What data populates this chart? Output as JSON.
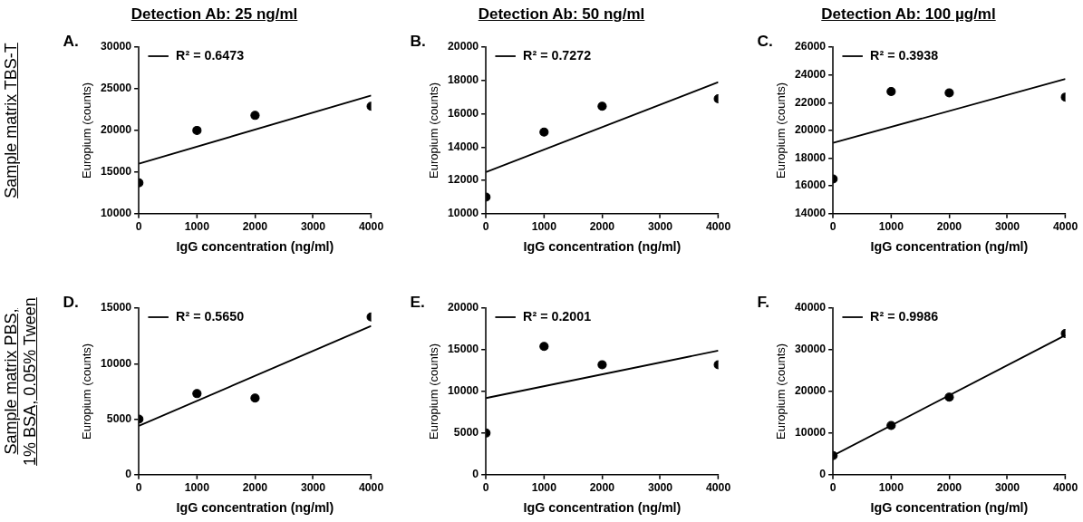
{
  "chart_data": [
    {
      "type": "scatter",
      "title": "Detection Ab: 25 ng/ml",
      "xlabel": "IgG concentration (ng/ml)",
      "ylabel": "Europium (counts)",
      "annotations": [
        "A.",
        "Sample matrix TBS-T"
      ],
      "xlim": [
        0,
        4000
      ],
      "xticks": [
        0,
        1000,
        2000,
        3000,
        4000
      ],
      "ylim": [
        10000,
        30000
      ],
      "yticks": [
        10000,
        15000,
        20000,
        25000,
        30000
      ],
      "grid": false,
      "legend": "top left",
      "series": [
        {
          "type": "scatter",
          "marker": "circle",
          "color": "#000000",
          "x": [
            0,
            1000,
            2000,
            4000
          ],
          "values": [
            13700,
            20000,
            21800,
            22900
          ]
        },
        {
          "type": "line",
          "name": "R² = 0.6473",
          "color": "#000000",
          "x": [
            0,
            4000
          ],
          "values": [
            16000,
            24200
          ]
        }
      ]
    },
    {
      "type": "scatter",
      "title": "Detection Ab: 50 ng/ml",
      "xlabel": "IgG concentration (ng/ml)",
      "ylabel": "Europium (counts)",
      "annotations": [
        "B."
      ],
      "xlim": [
        0,
        4000
      ],
      "xticks": [
        0,
        1000,
        2000,
        3000,
        4000
      ],
      "ylim": [
        10000,
        20000
      ],
      "yticks": [
        10000,
        12000,
        14000,
        16000,
        18000,
        20000
      ],
      "grid": false,
      "legend": "top left",
      "series": [
        {
          "type": "scatter",
          "marker": "circle",
          "color": "#000000",
          "x": [
            0,
            1000,
            2000,
            4000
          ],
          "values": [
            11000,
            14900,
            16450,
            16900
          ]
        },
        {
          "type": "line",
          "name": "R² = 0.7272",
          "color": "#000000",
          "x": [
            0,
            4000
          ],
          "values": [
            12500,
            17900
          ]
        }
      ]
    },
    {
      "type": "scatter",
      "title": "Detection Ab: 100 µg/ml",
      "xlabel": "IgG concentration (ng/ml)",
      "ylabel": "Europium (counts)",
      "annotations": [
        "C."
      ],
      "xlim": [
        0,
        4000
      ],
      "xticks": [
        0,
        1000,
        2000,
        3000,
        4000
      ],
      "ylim": [
        14000,
        26000
      ],
      "yticks": [
        14000,
        16000,
        18000,
        20000,
        22000,
        24000,
        26000
      ],
      "grid": false,
      "legend": "top left",
      "series": [
        {
          "type": "scatter",
          "marker": "circle",
          "color": "#000000",
          "x": [
            0,
            1000,
            2000,
            4000
          ],
          "values": [
            16500,
            22800,
            22700,
            22400
          ]
        },
        {
          "type": "line",
          "name": "R² = 0.3938",
          "color": "#000000",
          "x": [
            0,
            4000
          ],
          "values": [
            19100,
            23700
          ]
        }
      ]
    },
    {
      "type": "scatter",
      "xlabel": "IgG concentration (ng/ml)",
      "ylabel": "Europium (counts)",
      "annotations": [
        "D.",
        "Sample matrix PBS,",
        "1% BSA, 0.05% Tween"
      ],
      "xlim": [
        0,
        4000
      ],
      "xticks": [
        0,
        1000,
        2000,
        3000,
        4000
      ],
      "ylim": [
        0,
        15000
      ],
      "yticks": [
        0,
        5000,
        10000,
        15000
      ],
      "grid": false,
      "legend": "top left",
      "series": [
        {
          "type": "scatter",
          "marker": "circle",
          "color": "#000000",
          "x": [
            0,
            1000,
            2000,
            4000
          ],
          "values": [
            5000,
            7300,
            6900,
            14200
          ]
        },
        {
          "type": "line",
          "name": "R² = 0.5650",
          "color": "#000000",
          "x": [
            0,
            4000
          ],
          "values": [
            4400,
            13400
          ]
        }
      ]
    },
    {
      "type": "scatter",
      "xlabel": "IgG concentration (ng/ml)",
      "ylabel": "Europium (counts)",
      "annotations": [
        "E."
      ],
      "xlim": [
        0,
        4000
      ],
      "xticks": [
        0,
        1000,
        2000,
        3000,
        4000
      ],
      "ylim": [
        0,
        20000
      ],
      "yticks": [
        0,
        5000,
        10000,
        15000,
        20000
      ],
      "grid": false,
      "legend": "top left",
      "series": [
        {
          "type": "scatter",
          "marker": "circle",
          "color": "#000000",
          "x": [
            0,
            1000,
            2000,
            4000
          ],
          "values": [
            5000,
            15400,
            13200,
            13200
          ]
        },
        {
          "type": "line",
          "name": "R² = 0.2001",
          "color": "#000000",
          "x": [
            0,
            4000
          ],
          "values": [
            9200,
            14900
          ]
        }
      ]
    },
    {
      "type": "scatter",
      "xlabel": "IgG concentration (ng/ml)",
      "ylabel": "Europium (counts)",
      "annotations": [
        "F."
      ],
      "xlim": [
        0,
        4000
      ],
      "xticks": [
        0,
        1000,
        2000,
        3000,
        4000
      ],
      "ylim": [
        0,
        40000
      ],
      "yticks": [
        0,
        10000,
        20000,
        30000,
        40000
      ],
      "grid": false,
      "legend": "top left",
      "series": [
        {
          "type": "scatter",
          "marker": "circle",
          "color": "#000000",
          "x": [
            0,
            1000,
            2000,
            4000
          ],
          "values": [
            4600,
            11800,
            18600,
            33900
          ]
        },
        {
          "type": "line",
          "name": "R² = 0.9986",
          "color": "#000000",
          "x": [
            0,
            4000
          ],
          "values": [
            4600,
            33500
          ]
        }
      ]
    }
  ]
}
